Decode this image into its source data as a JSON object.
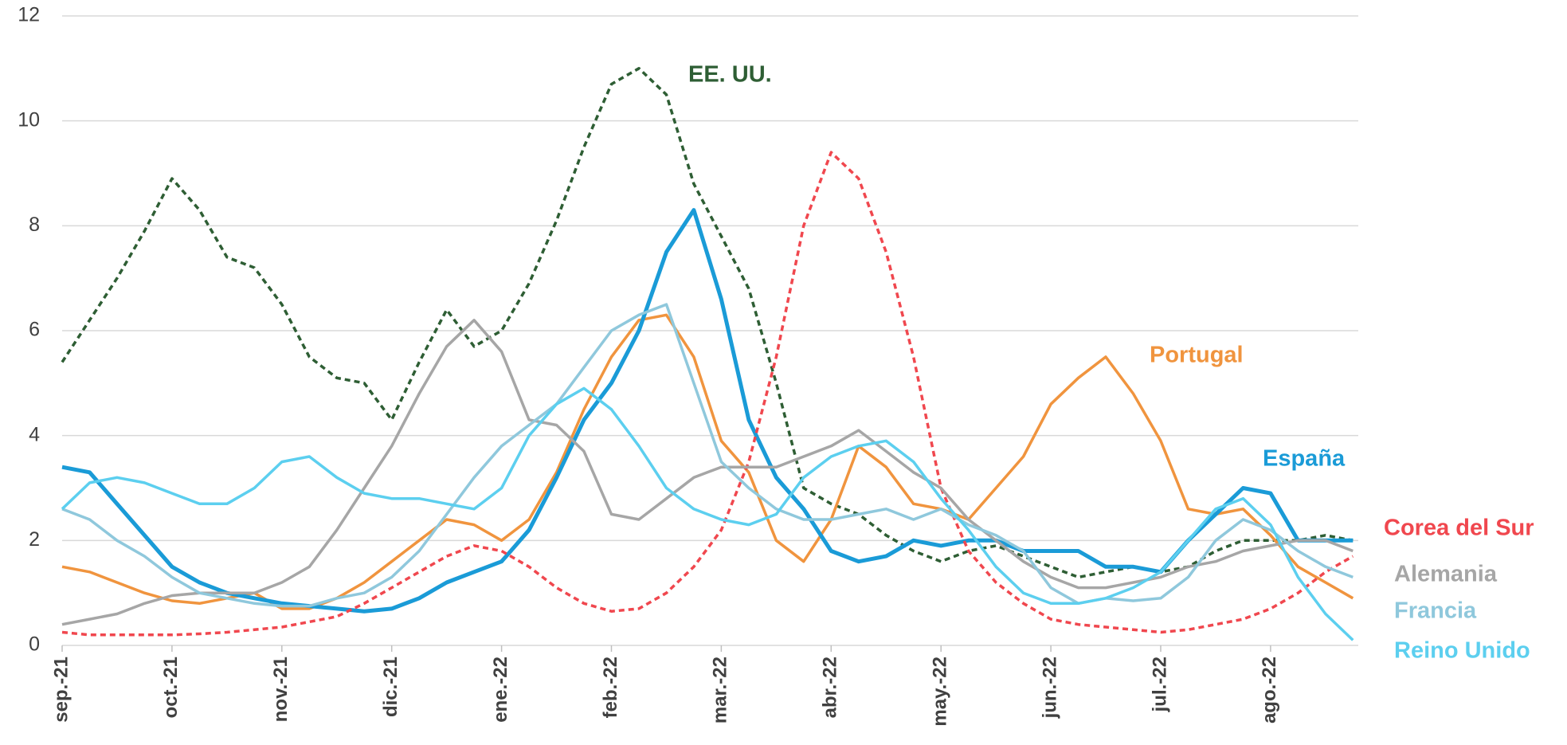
{
  "chart_data": {
    "type": "line",
    "categories": [
      "sep.-21",
      null,
      null,
      null,
      "oct.-21",
      null,
      null,
      null,
      "nov.-21",
      null,
      null,
      null,
      "dic.-21",
      null,
      null,
      null,
      "ene.-22",
      null,
      null,
      null,
      "feb.-22",
      null,
      null,
      null,
      "mar.-22",
      null,
      null,
      null,
      "abr.-22",
      null,
      null,
      null,
      "may.-22",
      null,
      null,
      null,
      "jun.-22",
      null,
      null,
      null,
      "jul.-22",
      null,
      null,
      null,
      "ago.-22",
      null,
      null,
      null
    ],
    "ylim": [
      0,
      12
    ],
    "yticks": [
      0,
      2,
      4,
      6,
      8,
      10,
      12
    ],
    "grid": true,
    "series": [
      {
        "name": "EE. UU.",
        "color": "#2e5e34",
        "dashed": true,
        "values": [
          5.4,
          6.2,
          7.0,
          7.9,
          8.9,
          8.3,
          7.4,
          7.2,
          6.5,
          5.5,
          5.1,
          5.0,
          4.3,
          5.4,
          6.4,
          5.7,
          6.0,
          6.9,
          8.1,
          9.5,
          10.7,
          11.0,
          10.5,
          8.8,
          7.8,
          6.8,
          5.0,
          3.0,
          2.7,
          2.5,
          2.1,
          1.8,
          1.6,
          1.8,
          1.9,
          1.7,
          1.5,
          1.3,
          1.4,
          1.5,
          1.4,
          1.5,
          1.8,
          2.0,
          2.0,
          2.0,
          2.1,
          2.0
        ]
      },
      {
        "name": "Portugal",
        "color": "#f0943e",
        "values": [
          1.5,
          1.4,
          1.2,
          1.0,
          0.85,
          0.8,
          0.9,
          1.0,
          0.7,
          0.7,
          0.9,
          1.2,
          1.6,
          2.0,
          2.4,
          2.3,
          2.0,
          2.4,
          3.3,
          4.5,
          5.5,
          6.2,
          6.3,
          5.5,
          3.9,
          3.3,
          2.0,
          1.6,
          2.4,
          3.8,
          3.4,
          2.7,
          2.6,
          2.4,
          3.0,
          3.6,
          4.6,
          5.1,
          5.5,
          4.8,
          3.9,
          2.6,
          2.5,
          2.6,
          2.1,
          1.5,
          1.2,
          0.9
        ]
      },
      {
        "name": "España",
        "color": "#1a9bd7",
        "width": 5,
        "values": [
          3.4,
          3.3,
          2.7,
          2.1,
          1.5,
          1.2,
          1.0,
          0.9,
          0.8,
          0.75,
          0.7,
          0.65,
          0.7,
          0.9,
          1.2,
          1.4,
          1.6,
          2.2,
          3.2,
          4.3,
          5.0,
          6.0,
          7.5,
          8.3,
          6.6,
          4.3,
          3.2,
          2.6,
          1.8,
          1.6,
          1.7,
          2.0,
          1.9,
          2.0,
          2.0,
          1.8,
          1.8,
          1.8,
          1.5,
          1.5,
          1.4,
          2.0,
          2.5,
          3.0,
          2.9,
          2.0,
          2.0,
          2.0
        ]
      },
      {
        "name": "Corea del Sur",
        "color": "#f0474e",
        "dashed": true,
        "values": [
          0.25,
          0.2,
          0.2,
          0.2,
          0.2,
          0.22,
          0.25,
          0.3,
          0.35,
          0.45,
          0.55,
          0.8,
          1.1,
          1.4,
          1.7,
          1.9,
          1.8,
          1.5,
          1.1,
          0.8,
          0.65,
          0.7,
          1.0,
          1.5,
          2.2,
          3.5,
          5.5,
          8.0,
          9.4,
          8.9,
          7.5,
          5.5,
          3.0,
          1.8,
          1.2,
          0.8,
          0.5,
          0.4,
          0.35,
          0.3,
          0.25,
          0.3,
          0.4,
          0.5,
          0.7,
          1.0,
          1.4,
          1.7
        ]
      },
      {
        "name": "Alemania",
        "color": "#a6a6a6",
        "values": [
          0.4,
          0.5,
          0.6,
          0.8,
          0.95,
          1.0,
          1.0,
          1.0,
          1.2,
          1.5,
          2.2,
          3.0,
          3.8,
          4.8,
          5.7,
          6.2,
          5.6,
          4.3,
          4.2,
          3.7,
          2.5,
          2.4,
          2.8,
          3.2,
          3.4,
          3.4,
          3.4,
          3.6,
          3.8,
          4.1,
          3.7,
          3.3,
          3.0,
          2.4,
          2.0,
          1.6,
          1.3,
          1.1,
          1.1,
          1.2,
          1.3,
          1.5,
          1.6,
          1.8,
          1.9,
          2.0,
          2.0,
          1.8
        ]
      },
      {
        "name": "Francia",
        "color": "#8fc8dc",
        "values": [
          2.6,
          2.4,
          2.0,
          1.7,
          1.3,
          1.0,
          0.9,
          0.8,
          0.75,
          0.75,
          0.9,
          1.0,
          1.3,
          1.8,
          2.5,
          3.2,
          3.8,
          4.2,
          4.6,
          5.3,
          6.0,
          6.3,
          6.5,
          5.0,
          3.5,
          3.0,
          2.6,
          2.4,
          2.4,
          2.5,
          2.6,
          2.4,
          2.6,
          2.3,
          2.1,
          1.8,
          1.1,
          0.8,
          0.9,
          0.85,
          0.9,
          1.3,
          2.0,
          2.4,
          2.2,
          1.8,
          1.5,
          1.3
        ]
      },
      {
        "name": "Reino Unido",
        "color": "#5ccfef",
        "values": [
          2.6,
          3.1,
          3.2,
          3.1,
          2.9,
          2.7,
          2.7,
          3.0,
          3.5,
          3.6,
          3.2,
          2.9,
          2.8,
          2.8,
          2.7,
          2.6,
          3.0,
          4.0,
          4.6,
          4.9,
          4.5,
          3.8,
          3.0,
          2.6,
          2.4,
          2.3,
          2.5,
          3.2,
          3.6,
          3.8,
          3.9,
          3.5,
          2.8,
          2.2,
          1.5,
          1.0,
          0.8,
          0.8,
          0.9,
          1.1,
          1.4,
          2.0,
          2.6,
          2.8,
          2.3,
          1.3,
          0.6,
          0.1
        ]
      }
    ]
  }
}
